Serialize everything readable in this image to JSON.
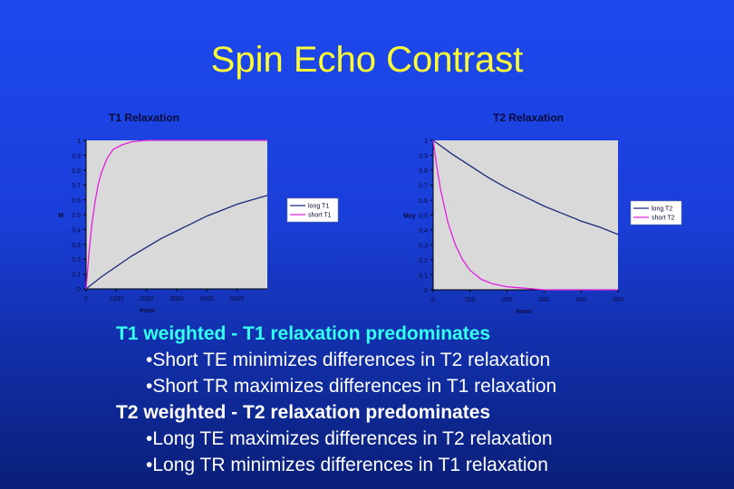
{
  "slide": {
    "title": "Spin Echo Contrast",
    "colors": {
      "background": "#1e49f0",
      "title": "#ffff33",
      "text": "#ffffff",
      "t1_heading": "#33ffee"
    }
  },
  "chart_data": [
    {
      "type": "line",
      "title": "T1 Relaxation",
      "xlabel": "msec",
      "ylabel": "M",
      "xlim": [
        0,
        6000
      ],
      "ylim": [
        0,
        1
      ],
      "x_ticks": [
        "0",
        "1000",
        "2000",
        "3000",
        "4000",
        "5000"
      ],
      "y_ticks": [
        "0",
        "0.1",
        "0.2",
        "0.3",
        "0.4",
        "0.5",
        "0.6",
        "0.7",
        "0.8",
        "0.9",
        "1"
      ],
      "grid": false,
      "legend_position": "right",
      "series": [
        {
          "name": "long T1",
          "color": "#1a2a7a",
          "x": [
            0,
            500,
            1000,
            1500,
            2000,
            2500,
            3000,
            3500,
            4000,
            4500,
            5000,
            5500,
            6000
          ],
          "y": [
            0,
            0.08,
            0.15,
            0.22,
            0.28,
            0.34,
            0.39,
            0.44,
            0.49,
            0.53,
            0.57,
            0.6,
            0.63
          ]
        },
        {
          "name": "short T1",
          "color": "#e020e0",
          "x": [
            0,
            100,
            200,
            300,
            400,
            500,
            700,
            900,
            1200,
            1500,
            2000,
            3000,
            4000,
            5000,
            6000
          ],
          "y": [
            0,
            0.25,
            0.45,
            0.59,
            0.7,
            0.78,
            0.88,
            0.94,
            0.97,
            0.99,
            1,
            1,
            1,
            1,
            1
          ]
        }
      ]
    },
    {
      "type": "line",
      "title": "T2 Relaxation",
      "xlabel": "msec",
      "ylabel": "Mxy",
      "xlim": [
        0,
        500
      ],
      "ylim": [
        0,
        1
      ],
      "x_ticks": [
        "0",
        "100",
        "200",
        "300",
        "400",
        "500"
      ],
      "y_ticks": [
        "0",
        "0.1",
        "0.2",
        "0.3",
        "0.4",
        "0.5",
        "0.6",
        "0.7",
        "0.8",
        "0.9",
        "1"
      ],
      "grid": false,
      "legend_position": "right",
      "series": [
        {
          "name": "long T2",
          "color": "#1a2a7a",
          "x": [
            0,
            50,
            100,
            150,
            200,
            250,
            300,
            350,
            400,
            450,
            500
          ],
          "y": [
            1,
            0.91,
            0.83,
            0.75,
            0.68,
            0.62,
            0.56,
            0.51,
            0.46,
            0.42,
            0.37
          ]
        },
        {
          "name": "short T2",
          "color": "#e020e0",
          "x": [
            0,
            10,
            20,
            40,
            60,
            80,
            100,
            130,
            160,
            200,
            250,
            300,
            400,
            500
          ],
          "y": [
            1,
            0.82,
            0.67,
            0.45,
            0.3,
            0.2,
            0.13,
            0.07,
            0.04,
            0.02,
            0.01,
            0,
            0,
            0
          ]
        }
      ]
    }
  ],
  "bullets": {
    "t1_heading": "T1 weighted - T1 relaxation predominates",
    "t1_item1": "•Short TE minimizes differences in T2 relaxation",
    "t1_item2": "•Short TR maximizes differences in T1 relaxation",
    "t2_heading": "T2 weighted - T2 relaxation predominates",
    "t2_item1": "•Long TE maximizes differences in T2 relaxation",
    "t2_item2": "•Long TR minimizes differences in T1 relaxation"
  }
}
